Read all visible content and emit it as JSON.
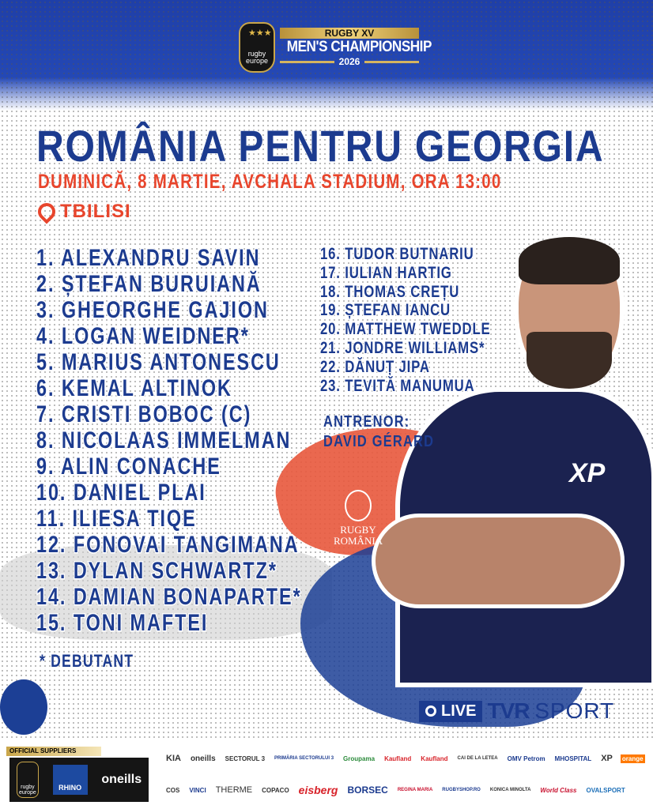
{
  "header": {
    "logo_text": "rugby europe",
    "competition_top": "RUGBY XV",
    "competition": "MEN'S CHAMPIONSHIP",
    "year": "2026"
  },
  "title": "ROMÂNIA PENTRU GEORGIA",
  "subtitle": "DUMINICĂ, 8 MARTIE, AVCHALA STADIUM, ORA 13:00",
  "city": "TBILISI",
  "starters": [
    "1. ALEXANDRU SAVIN",
    "2. ȘTEFAN BURUIANĂ",
    "3. GHEORGHE GAJION",
    "4. LOGAN WEIDNER*",
    "5. MARIUS ANTONESCU",
    "6. KEMAL ALTINOK",
    "7. CRISTI BOBOC (C)",
    "8. NICOLAAS IMMELMAN",
    "9. ALIN CONACHE",
    "10. DANIEL PLAI",
    "11. ILIESA TIQE",
    "12. FONOVAI TANGIMANA",
    "13. DYLAN SCHWARTZ*",
    "14. DAMIAN BONAPARTE*",
    "15. TONI MAFTEI"
  ],
  "replacements": [
    "16. TUDOR BUTNARIU",
    "17. IULIAN HARTIG",
    "18. THOMAS CREȚU",
    "19. ȘTEFAN IANCU",
    "20. MATTHEW TWEDDLE",
    "21. JONDRE WILLIAMS*",
    "22. DĂNUȚ JIPA",
    "23. TEVITĂ MANUMUA"
  ],
  "coach": {
    "label": "ANTRENOR:",
    "name": "DAVID GÉRARD"
  },
  "legend": "* DEBUTANT",
  "federation_logo": "RUGBY ROMÂNIA",
  "jersey_sponsor": "XP",
  "broadcast": {
    "live": "LIVE",
    "channel": "TVR",
    "channel_suffix": "SPORT"
  },
  "footer": {
    "official_suppliers": "OFFICIAL SUPPLIERS",
    "suppliers": [
      "rugby europe",
      "RHINO",
      "oneills"
    ],
    "sponsors_row1": [
      "KIA",
      "oneills",
      "SECTORUL 3",
      "PRIMĂRIA SECTORULUI 3",
      "Groupama",
      "Kaufland",
      "Kaufland",
      "CAI DE LA LETEA",
      "OMV Petrom",
      "MHOSPITAL",
      "XP",
      "orange"
    ],
    "sponsors_row2": [
      "COS",
      "VINCI",
      "THERME",
      "COPACO",
      "eisberg",
      "BORSEC",
      "REGINA MARIA",
      "RUGBYSHOP.RO",
      "KONICA MINOLTA",
      "World Class",
      "OVALSPORT"
    ]
  },
  "colors": {
    "primary_blue": "#1c3b8f",
    "accent_red": "#e8452c",
    "gold": "#c9a64a"
  }
}
